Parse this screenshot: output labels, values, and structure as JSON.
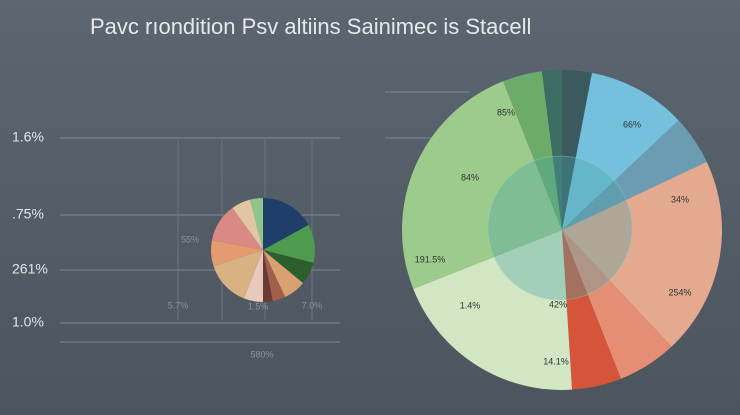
{
  "title": "Pavc rıondition Psv altiins Sainimec is Stacell",
  "axis_labels": [
    "1.6%",
    ".75%",
    "261%",
    "1.0%"
  ],
  "chart_data": [
    {
      "type": "pie",
      "values": [
        17,
        12,
        7,
        7,
        4,
        3,
        6,
        14,
        8,
        12,
        6,
        4
      ],
      "colors": [
        "#1f3f6a",
        "#4e9a4e",
        "#2d5f2e",
        "#d9a070",
        "#a0604a",
        "#6a3a34",
        "#e8c9bb",
        "#d8b282",
        "#e59b70",
        "#d98a84",
        "#e0c7a2",
        "#8fc48b"
      ],
      "annotations": [
        "55%",
        "5.7%",
        "1.5%",
        "7.0%",
        "580%"
      ]
    },
    {
      "type": "pie",
      "values": [
        3,
        10,
        5,
        20,
        6,
        5,
        20,
        25,
        4,
        2
      ],
      "colors": [
        "#3a5a5e",
        "#74c0dd",
        "#6b9cb2",
        "#e4aa90",
        "#e58e74",
        "#d5553a",
        "#d3e6c3",
        "#9ccb8b",
        "#6cab69",
        "#3c6d63"
      ],
      "annotations": [
        "85%",
        "66%",
        "84%",
        "34%",
        "191.5%",
        "254%",
        "1.4%",
        "42%",
        "14.1%"
      ]
    }
  ]
}
